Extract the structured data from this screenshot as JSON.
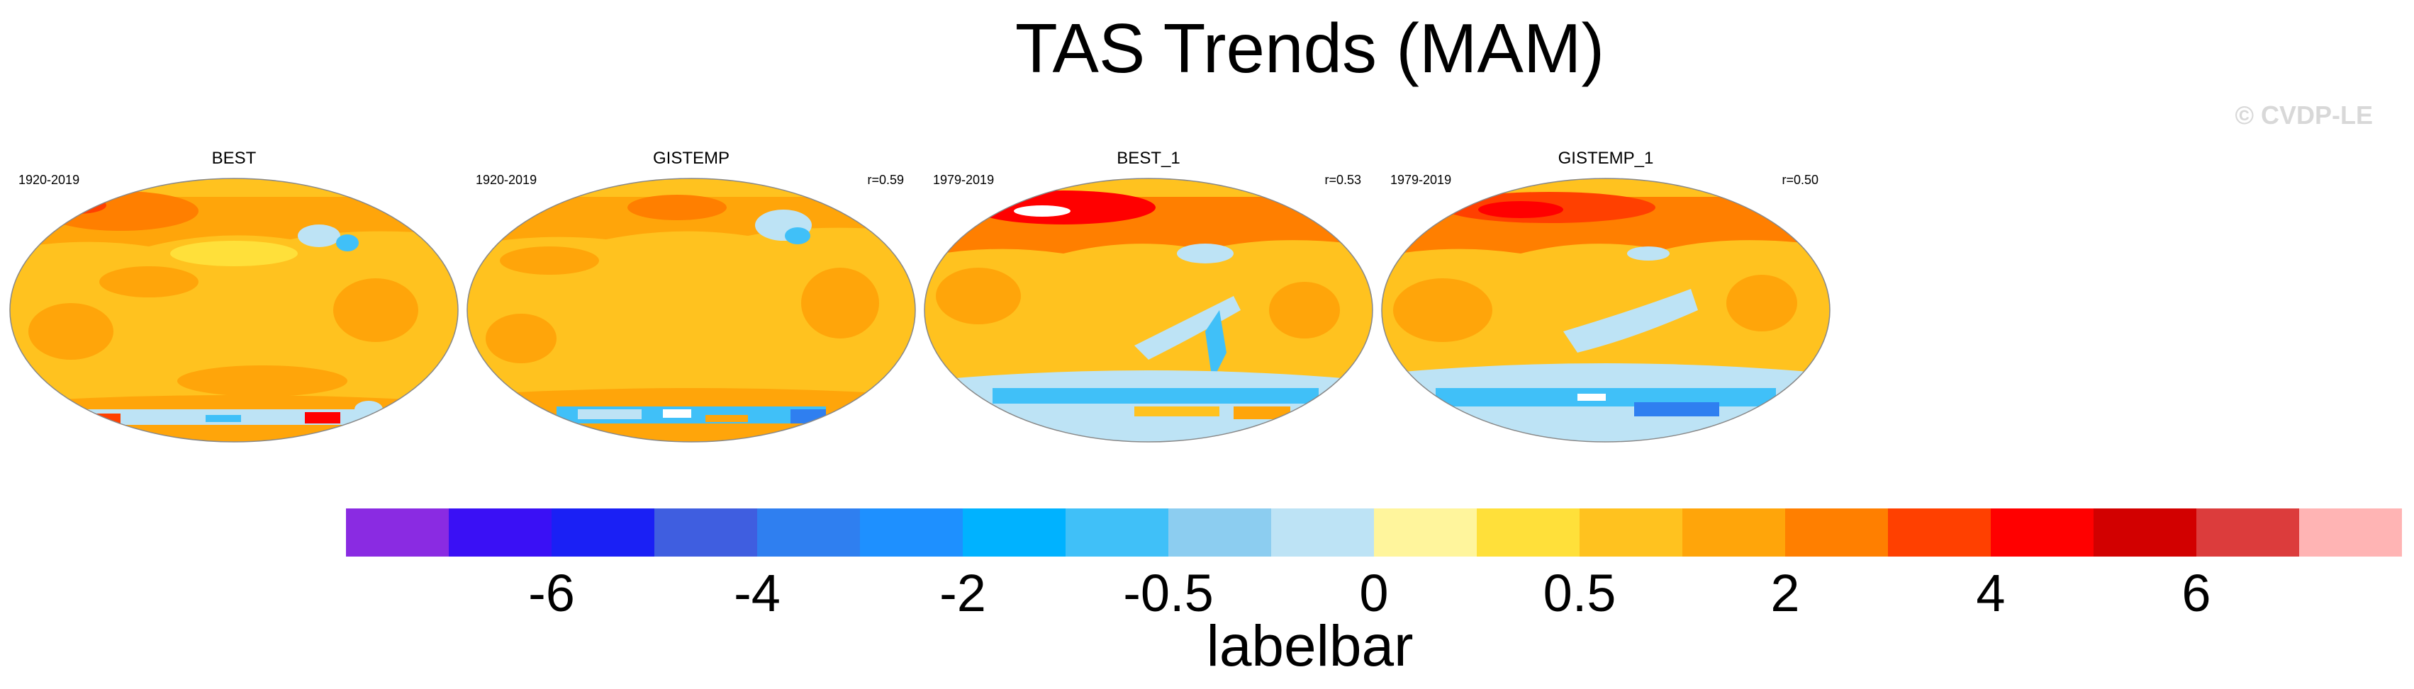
{
  "title": "TAS Trends (MAM)",
  "copyright": "© CVDP-LE",
  "panels": [
    {
      "name": "BEST",
      "period": "1920-2019",
      "corr": ""
    },
    {
      "name": "GISTEMP",
      "period": "1920-2019",
      "corr": "r=0.59"
    },
    {
      "name": "BEST_1",
      "period": "1979-2019",
      "corr": "r=0.53"
    },
    {
      "name": "GISTEMP_1",
      "period": "1979-2019",
      "corr": "r=0.50"
    }
  ],
  "colorbar": {
    "title": "labelbar",
    "colors": [
      "#8a2be2",
      "#3a10f5",
      "#1a20f5",
      "#3f5ee0",
      "#2f7ff0",
      "#1e90ff",
      "#00b2ff",
      "#40c0f8",
      "#8ccdf0",
      "#bde3f5",
      "#fff59c",
      "#ffe03a",
      "#ffc21f",
      "#ffa50a",
      "#ff7f00",
      "#ff4000",
      "#ff0000",
      "#d20000",
      "#dc3c3c",
      "#ffb4b4"
    ],
    "ticks": [
      {
        "label": "-6",
        "after_box": 2
      },
      {
        "label": "-4",
        "after_box": 4
      },
      {
        "label": "-2",
        "after_box": 6
      },
      {
        "label": "-0.5",
        "after_box": 8
      },
      {
        "label": "0",
        "after_box": 10
      },
      {
        "label": "0.5",
        "after_box": 12
      },
      {
        "label": "2",
        "after_box": 14
      },
      {
        "label": "4",
        "after_box": 16
      },
      {
        "label": "6",
        "after_box": 18
      }
    ]
  }
}
